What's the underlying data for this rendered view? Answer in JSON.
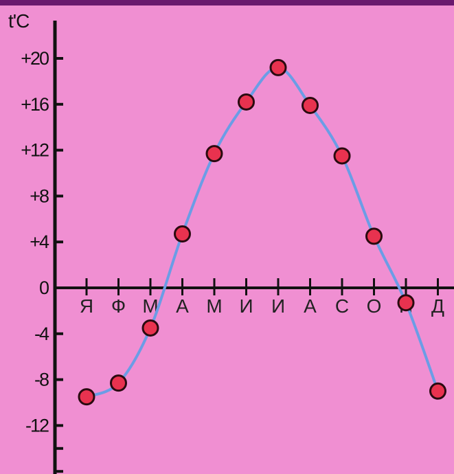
{
  "chart_data": {
    "type": "line",
    "ylabel": "t'C",
    "categories": [
      "Я",
      "Ф",
      "М",
      "А",
      "М",
      "И",
      "И",
      "А",
      "С",
      "О",
      "Н",
      "Д"
    ],
    "series": [
      {
        "values": [
          -9.5,
          -8.3,
          -3.5,
          4.7,
          11.7,
          16.2,
          19.2,
          15.9,
          11.5,
          4.5,
          -1.3,
          -9.0
        ]
      }
    ],
    "ylim": [
      -16,
      22
    ],
    "yticks": [
      20,
      16,
      12,
      8,
      4,
      0,
      -4,
      -8,
      -12
    ],
    "ytick_labels": [
      "+20",
      "+16",
      "+12",
      "+8",
      "+4",
      "0",
      "-4",
      "-8",
      "-12"
    ],
    "grid": false,
    "colors": {
      "background": "#f08fd2",
      "line": "#6b9de6",
      "marker_fill": "#e8324f",
      "marker_stroke": "#2a0a10",
      "axis": "#111111",
      "top_bar": "#6a1a6e"
    }
  }
}
